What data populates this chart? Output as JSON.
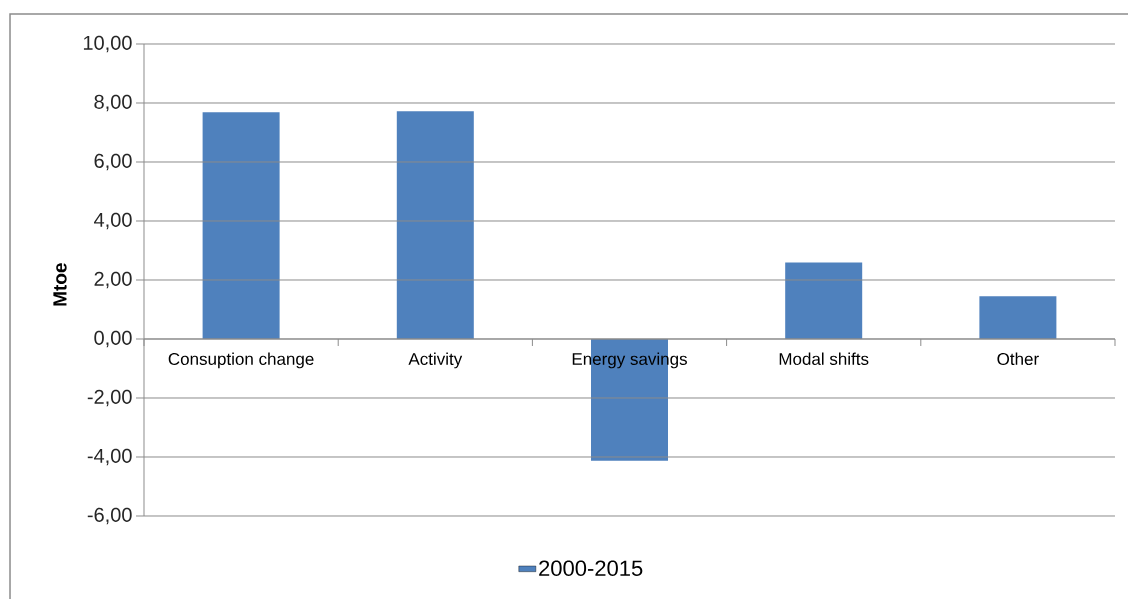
{
  "chart_data": {
    "type": "bar",
    "ylabel": "**Mtoe**",
    "categories": [
      "Consuption change",
      "Activity",
      "Energy savings",
      "Modal shifts",
      "Other"
    ],
    "series": [
      {
        "name": "2000-2015",
        "color": "#4f81bd",
        "values": [
          7.69,
          7.72,
          -4.13,
          2.59,
          1.45
        ]
      }
    ],
    "ylim": [
      -6,
      10
    ],
    "yticks": [
      {
        "value": -6,
        "label": "-6,00"
      },
      {
        "value": -4,
        "label": "-4,00"
      },
      {
        "value": -2,
        "label": "-2,00"
      },
      {
        "value": 0,
        "label": "0,00"
      },
      {
        "value": 2,
        "label": "2,00"
      },
      {
        "value": 4,
        "label": "4,00"
      },
      {
        "value": 6,
        "label": "6,00"
      },
      {
        "value": 8,
        "label": "8,00"
      },
      {
        "value": 10,
        "label": "10,00"
      }
    ],
    "grid": "y",
    "legend": "bottom"
  }
}
